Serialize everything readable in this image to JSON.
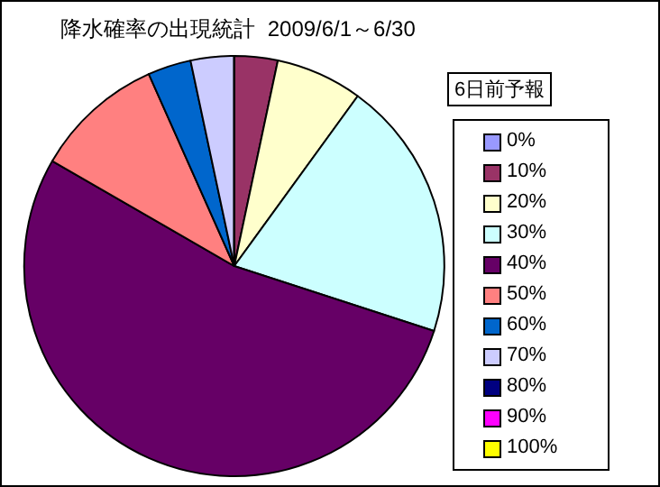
{
  "chart_data": {
    "type": "pie",
    "title": "降水確率の出現統計  2009/6/1～6/30",
    "legend_title": "6日前予報",
    "legend": "right",
    "categories": [
      "0%",
      "10%",
      "20%",
      "30%",
      "40%",
      "50%",
      "60%",
      "70%",
      "80%",
      "90%",
      "100%"
    ],
    "values": [
      0,
      3.33,
      6.67,
      20,
      53.33,
      10,
      3.33,
      3.34,
      0,
      0,
      0
    ],
    "colors": [
      "#9999ff",
      "#993366",
      "#ffffcc",
      "#ccffff",
      "#660066",
      "#ff8080",
      "#0066cc",
      "#ccccff",
      "#000080",
      "#ff00ff",
      "#ffff00"
    ]
  }
}
